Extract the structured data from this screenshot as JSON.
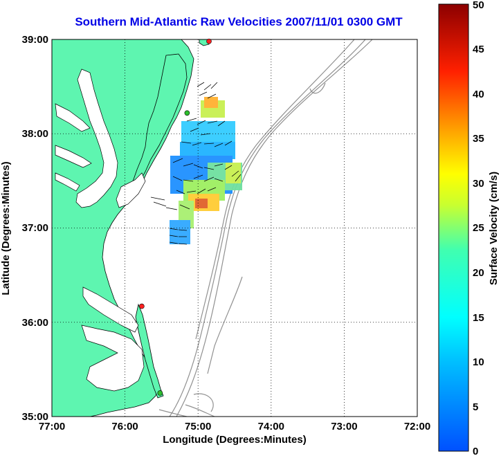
{
  "title": "Southern Mid-Atlantic Raw Velocities 2007/11/01 0300 GMT",
  "map": {
    "x_label": "Longitude (Degrees:Minutes)",
    "y_label": "Latitude (Degrees:Minutes)",
    "x_ticks": [
      "77:00",
      "76:00",
      "75:00",
      "74:00",
      "73:00",
      "72:00"
    ],
    "y_ticks": [
      "39:00",
      "38:00",
      "37:00",
      "36:00",
      "35:00"
    ],
    "x_range": [
      -77,
      -72
    ],
    "y_range": [
      35,
      39
    ],
    "land_color": "#5ef5b0",
    "grid": "dotted"
  },
  "colorbar": {
    "label": "Surface Velocity (cm/s)",
    "ticks": [
      "0",
      "5",
      "10",
      "15",
      "20",
      "25",
      "30",
      "35",
      "40",
      "45",
      "50"
    ],
    "range": [
      0,
      50
    ],
    "colormap": "jet"
  },
  "stations": [
    {
      "name": "",
      "lon": -74.85,
      "lat": 38.98,
      "color": "#ff2020"
    },
    {
      "name": "",
      "lon": -75.15,
      "lat": 38.22,
      "color": "#2ec02e"
    },
    {
      "name": "",
      "lon": -75.77,
      "lat": 36.17,
      "color": "#ff2020"
    },
    {
      "name": "",
      "lon": -75.52,
      "lat": 35.25,
      "color": "#2ec02e"
    }
  ]
}
